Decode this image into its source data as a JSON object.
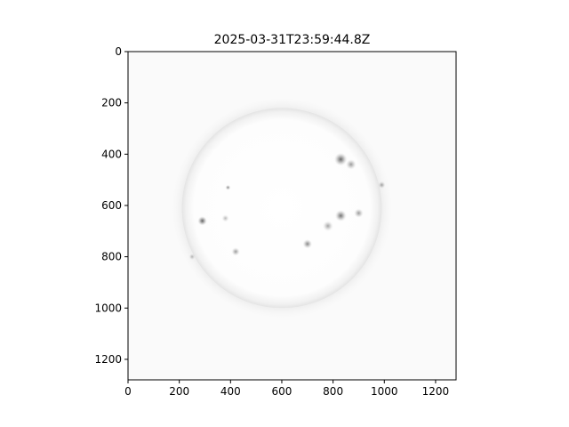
{
  "chart_data": {
    "type": "heatmap",
    "title": "2025-03-31T23:59:44.8Z",
    "xlabel": "",
    "ylabel": "",
    "xlim": [
      0,
      1280
    ],
    "ylim": [
      1280,
      0
    ],
    "x_ticks": [
      0,
      200,
      400,
      600,
      800,
      1000,
      1200
    ],
    "y_ticks": [
      0,
      200,
      400,
      600,
      800,
      1000,
      1200
    ],
    "x_tick_labels": [
      "0",
      "200",
      "400",
      "600",
      "800",
      "1000",
      "1200"
    ],
    "y_tick_labels": [
      "0",
      "200",
      "400",
      "600",
      "800",
      "1000",
      "1200"
    ],
    "grid": false,
    "colormap": "grayscale-inverted",
    "background_color": "#fafafa",
    "disk": {
      "center_x": 600,
      "center_y": 610,
      "radius": 390
    },
    "active_regions": [
      {
        "x": 830,
        "y": 420,
        "r": 25,
        "intensity": 0.75
      },
      {
        "x": 870,
        "y": 440,
        "r": 20,
        "intensity": 0.5
      },
      {
        "x": 830,
        "y": 640,
        "r": 22,
        "intensity": 0.7
      },
      {
        "x": 900,
        "y": 630,
        "r": 18,
        "intensity": 0.5
      },
      {
        "x": 780,
        "y": 680,
        "r": 20,
        "intensity": 0.45
      },
      {
        "x": 700,
        "y": 750,
        "r": 18,
        "intensity": 0.6
      },
      {
        "x": 290,
        "y": 660,
        "r": 18,
        "intensity": 0.8
      },
      {
        "x": 390,
        "y": 530,
        "r": 10,
        "intensity": 0.6
      },
      {
        "x": 380,
        "y": 650,
        "r": 14,
        "intensity": 0.35
      },
      {
        "x": 420,
        "y": 780,
        "r": 16,
        "intensity": 0.5
      },
      {
        "x": 990,
        "y": 520,
        "r": 14,
        "intensity": 0.45
      },
      {
        "x": 250,
        "y": 800,
        "r": 12,
        "intensity": 0.35
      }
    ]
  }
}
